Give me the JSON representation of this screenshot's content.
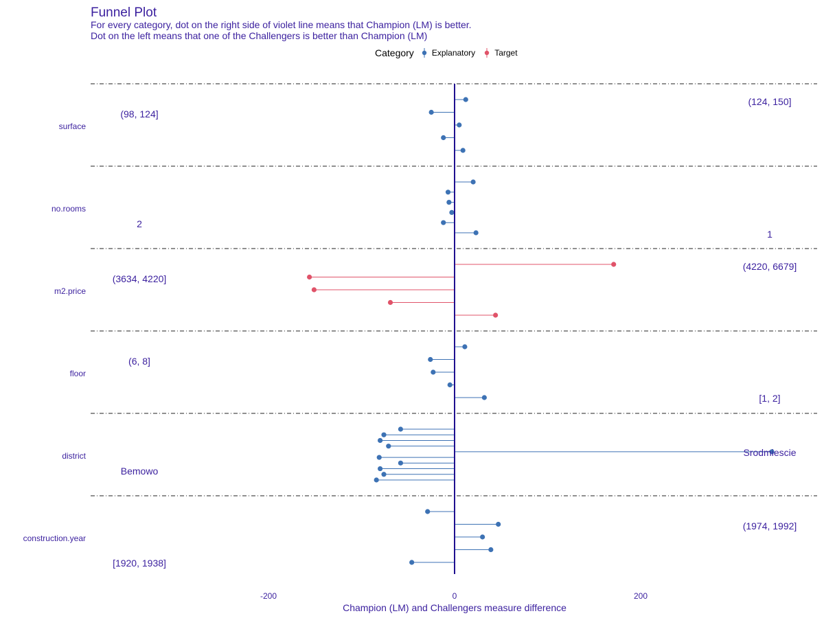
{
  "title": "Funnel Plot",
  "subtitle_lines": [
    "For every category, dot on the right side of violet line means that Champion (LM) is better.",
    "Dot on the left means that one of the Challengers is better than Champion (LM)"
  ],
  "legend": {
    "title": "Category",
    "items": [
      {
        "label": "Explanatory",
        "color": "#3d72b4"
      },
      {
        "label": "Target",
        "color": "#e05369"
      }
    ]
  },
  "colors": {
    "text": "#3a1f9e",
    "zero_line": "#1f0f8f",
    "explanatory": "#3d72b4",
    "target": "#e05369",
    "separator": "#222222"
  },
  "chart_data": {
    "type": "scatter",
    "xlabel": "Champion (LM) and Challengers measure difference",
    "xticks": [
      -200,
      0,
      200
    ],
    "xlim": [
      -390,
      390
    ],
    "groups": [
      {
        "name": "surface",
        "category": "Explanatory",
        "left_label": "(98, 124]",
        "right_label": "(124, 150]",
        "values": [
          12,
          -25,
          5,
          -12,
          9
        ]
      },
      {
        "name": "no.rooms",
        "category": "Explanatory",
        "left_label": "2",
        "right_label": "1",
        "values": [
          20,
          -7,
          -6,
          -3,
          -12,
          23
        ]
      },
      {
        "name": "m2.price",
        "category": "Target",
        "left_label": "(3634, 4220]",
        "right_label": "(4220, 6679]",
        "values": [
          171,
          -156,
          -151,
          -69,
          44
        ]
      },
      {
        "name": "floor",
        "category": "Explanatory",
        "left_label": "(6, 8]",
        "right_label": "[1, 2]",
        "values": [
          11,
          -26,
          -23,
          -5,
          32
        ]
      },
      {
        "name": "district",
        "category": "Explanatory",
        "left_label": "Bemowo",
        "right_label": "Srodmiescie",
        "values": [
          -58,
          -76,
          -80,
          -71,
          341,
          -81,
          -58,
          -80,
          -76,
          -84
        ]
      },
      {
        "name": "construction.year",
        "category": "Explanatory",
        "left_label": "[1920, 1938]",
        "right_label": "(1974, 1992]",
        "values": [
          -29,
          47,
          30,
          39,
          -46
        ]
      }
    ]
  }
}
